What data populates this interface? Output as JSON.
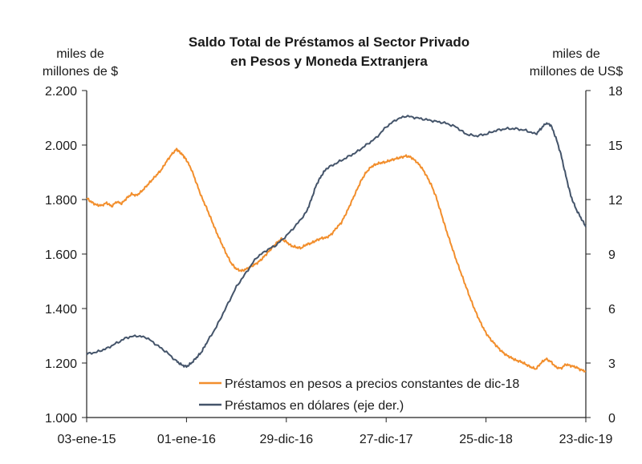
{
  "chart_data": {
    "type": "line",
    "title": [
      "Saldo Total de Préstamos al Sector Privado",
      "en Pesos y Moneda Extranjera"
    ],
    "left_axis_label": [
      "miles de",
      "millones de $"
    ],
    "right_axis_label": [
      "miles de",
      "millones de US$"
    ],
    "x_tick_labels": [
      "03-ene-15",
      "01-ene-16",
      "29-dic-16",
      "27-dic-17",
      "25-dic-18",
      "23-dic-19"
    ],
    "x_range": [
      0,
      5
    ],
    "ylim_left": [
      1000,
      2200
    ],
    "ylim_right": [
      0,
      18
    ],
    "left_ticks": [
      1000,
      1200,
      1400,
      1600,
      1800,
      2000,
      2200
    ],
    "left_tick_labels": [
      "1.000",
      "1.200",
      "1.400",
      "1.600",
      "1.800",
      "2.000",
      "2.200"
    ],
    "right_ticks": [
      0,
      3,
      6,
      9,
      12,
      15,
      18
    ],
    "right_tick_labels": [
      "0",
      "3",
      "6",
      "9",
      "12",
      "15",
      "18"
    ],
    "series": [
      {
        "name": "Préstamos en pesos a precios constantes de dic-18",
        "axis": "left",
        "color": "#f28e2c",
        "points": [
          [
            0.0,
            1805
          ],
          [
            0.05,
            1790
          ],
          [
            0.1,
            1780
          ],
          [
            0.15,
            1778
          ],
          [
            0.2,
            1788
          ],
          [
            0.25,
            1775
          ],
          [
            0.3,
            1792
          ],
          [
            0.35,
            1785
          ],
          [
            0.4,
            1805
          ],
          [
            0.45,
            1820
          ],
          [
            0.5,
            1815
          ],
          [
            0.55,
            1830
          ],
          [
            0.6,
            1850
          ],
          [
            0.65,
            1870
          ],
          [
            0.7,
            1890
          ],
          [
            0.75,
            1910
          ],
          [
            0.8,
            1940
          ],
          [
            0.85,
            1965
          ],
          [
            0.9,
            1985
          ],
          [
            0.93,
            1975
          ],
          [
            0.97,
            1960
          ],
          [
            1.0,
            1945
          ],
          [
            1.05,
            1910
          ],
          [
            1.1,
            1860
          ],
          [
            1.15,
            1810
          ],
          [
            1.2,
            1770
          ],
          [
            1.25,
            1725
          ],
          [
            1.3,
            1680
          ],
          [
            1.35,
            1640
          ],
          [
            1.4,
            1600
          ],
          [
            1.45,
            1565
          ],
          [
            1.5,
            1545
          ],
          [
            1.55,
            1538
          ],
          [
            1.6,
            1545
          ],
          [
            1.65,
            1555
          ],
          [
            1.7,
            1565
          ],
          [
            1.75,
            1580
          ],
          [
            1.8,
            1600
          ],
          [
            1.85,
            1620
          ],
          [
            1.9,
            1640
          ],
          [
            1.95,
            1655
          ],
          [
            2.0,
            1645
          ],
          [
            2.05,
            1630
          ],
          [
            2.1,
            1625
          ],
          [
            2.15,
            1622
          ],
          [
            2.2,
            1635
          ],
          [
            2.25,
            1640
          ],
          [
            2.3,
            1650
          ],
          [
            2.35,
            1658
          ],
          [
            2.4,
            1660
          ],
          [
            2.45,
            1672
          ],
          [
            2.5,
            1695
          ],
          [
            2.55,
            1715
          ],
          [
            2.6,
            1750
          ],
          [
            2.65,
            1790
          ],
          [
            2.7,
            1830
          ],
          [
            2.75,
            1870
          ],
          [
            2.8,
            1900
          ],
          [
            2.85,
            1920
          ],
          [
            2.9,
            1930
          ],
          [
            2.95,
            1935
          ],
          [
            3.0,
            1938
          ],
          [
            3.05,
            1945
          ],
          [
            3.1,
            1950
          ],
          [
            3.15,
            1955
          ],
          [
            3.2,
            1960
          ],
          [
            3.25,
            1955
          ],
          [
            3.3,
            1940
          ],
          [
            3.35,
            1920
          ],
          [
            3.4,
            1890
          ],
          [
            3.45,
            1855
          ],
          [
            3.5,
            1810
          ],
          [
            3.55,
            1750
          ],
          [
            3.6,
            1690
          ],
          [
            3.65,
            1635
          ],
          [
            3.7,
            1580
          ],
          [
            3.75,
            1530
          ],
          [
            3.8,
            1480
          ],
          [
            3.85,
            1430
          ],
          [
            3.9,
            1385
          ],
          [
            3.95,
            1345
          ],
          [
            4.0,
            1310
          ],
          [
            4.05,
            1285
          ],
          [
            4.1,
            1265
          ],
          [
            4.15,
            1245
          ],
          [
            4.2,
            1230
          ],
          [
            4.25,
            1220
          ],
          [
            4.3,
            1210
          ],
          [
            4.35,
            1205
          ],
          [
            4.4,
            1195
          ],
          [
            4.45,
            1185
          ],
          [
            4.5,
            1178
          ],
          [
            4.55,
            1200
          ],
          [
            4.6,
            1215
          ],
          [
            4.65,
            1205
          ],
          [
            4.7,
            1185
          ],
          [
            4.75,
            1180
          ],
          [
            4.8,
            1195
          ],
          [
            4.85,
            1190
          ],
          [
            4.9,
            1185
          ],
          [
            4.95,
            1175
          ],
          [
            5.0,
            1170
          ]
        ]
      },
      {
        "name": "Préstamos en dólares (eje der.)",
        "axis": "right",
        "color": "#44546a",
        "points": [
          [
            0.0,
            3.5
          ],
          [
            0.1,
            3.6
          ],
          [
            0.2,
            3.8
          ],
          [
            0.3,
            4.1
          ],
          [
            0.4,
            4.4
          ],
          [
            0.5,
            4.5
          ],
          [
            0.6,
            4.4
          ],
          [
            0.7,
            4.0
          ],
          [
            0.8,
            3.6
          ],
          [
            0.9,
            3.1
          ],
          [
            0.95,
            2.9
          ],
          [
            1.0,
            2.8
          ],
          [
            1.05,
            3.0
          ],
          [
            1.1,
            3.3
          ],
          [
            1.15,
            3.6
          ],
          [
            1.2,
            4.1
          ],
          [
            1.3,
            5.0
          ],
          [
            1.4,
            6.1
          ],
          [
            1.5,
            7.2
          ],
          [
            1.6,
            8.0
          ],
          [
            1.7,
            8.8
          ],
          [
            1.8,
            9.2
          ],
          [
            1.9,
            9.5
          ],
          [
            2.0,
            10.0
          ],
          [
            2.1,
            10.6
          ],
          [
            2.2,
            11.3
          ],
          [
            2.25,
            12.0
          ],
          [
            2.3,
            12.8
          ],
          [
            2.35,
            13.3
          ],
          [
            2.4,
            13.7
          ],
          [
            2.5,
            14.0
          ],
          [
            2.6,
            14.3
          ],
          [
            2.7,
            14.6
          ],
          [
            2.8,
            15.0
          ],
          [
            2.9,
            15.4
          ],
          [
            3.0,
            16.0
          ],
          [
            3.1,
            16.4
          ],
          [
            3.2,
            16.6
          ],
          [
            3.3,
            16.5
          ],
          [
            3.4,
            16.4
          ],
          [
            3.5,
            16.3
          ],
          [
            3.6,
            16.2
          ],
          [
            3.7,
            16.0
          ],
          [
            3.8,
            15.6
          ],
          [
            3.9,
            15.5
          ],
          [
            4.0,
            15.6
          ],
          [
            4.1,
            15.8
          ],
          [
            4.2,
            15.9
          ],
          [
            4.3,
            15.9
          ],
          [
            4.4,
            15.8
          ],
          [
            4.5,
            15.6
          ],
          [
            4.55,
            15.9
          ],
          [
            4.6,
            16.2
          ],
          [
            4.65,
            16.1
          ],
          [
            4.7,
            15.4
          ],
          [
            4.75,
            14.5
          ],
          [
            4.8,
            13.3
          ],
          [
            4.85,
            12.2
          ],
          [
            4.9,
            11.5
          ],
          [
            4.95,
            11.0
          ],
          [
            5.0,
            10.5
          ]
        ]
      }
    ],
    "legend_position": "bottom-center"
  },
  "colors": {
    "axis": "#222222",
    "pesos": "#f28e2c",
    "dollars": "#44546a"
  }
}
